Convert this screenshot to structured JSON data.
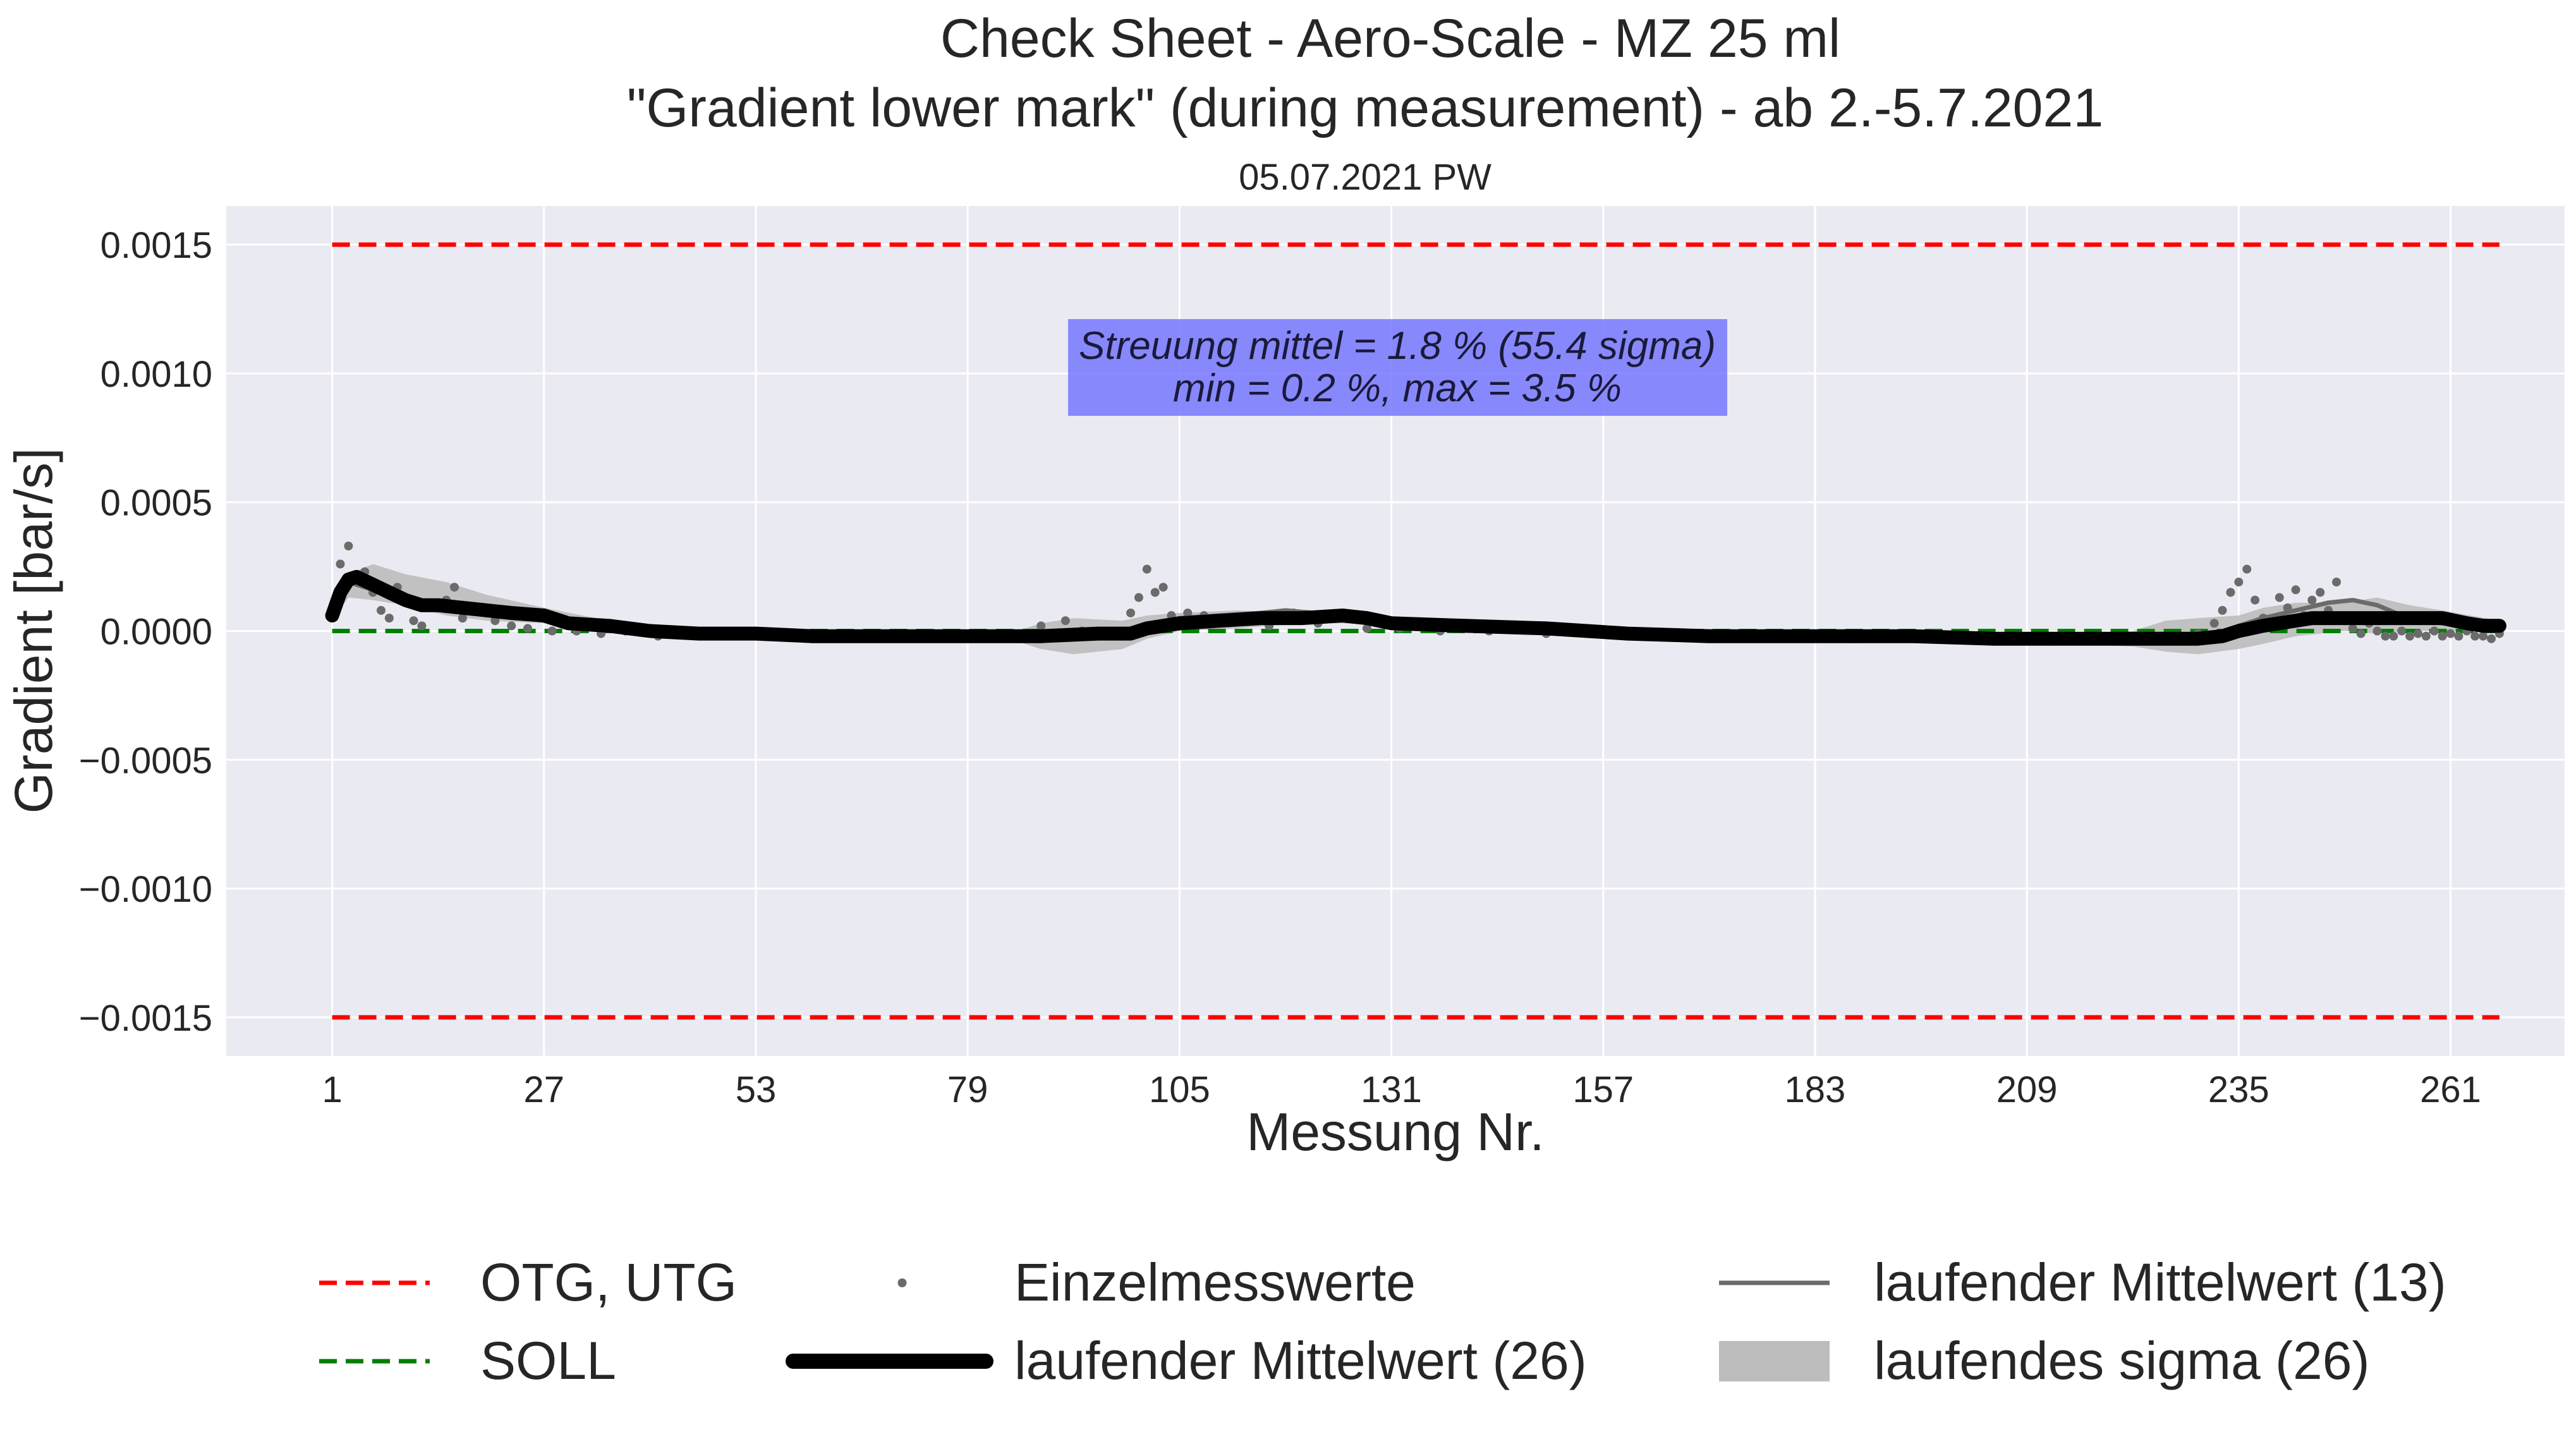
{
  "chart_data": {
    "type": "line",
    "title_line1": "Check Sheet - Aero-Scale - MZ 25 ml",
    "title_line2": "\"Gradient lower mark\" (during measurement) - ab 2.-5.7.2021",
    "subtitle": "05.07.2021 PW",
    "xlabel": "Messung Nr.",
    "ylabel": "Gradient [bar/s]",
    "xlim": [
      -12,
      275
    ],
    "ylim": [
      -0.00165,
      0.00165
    ],
    "x_ticks": [
      1,
      27,
      53,
      79,
      105,
      131,
      157,
      183,
      209,
      235,
      261
    ],
    "y_ticks": [
      0.0015,
      0.001,
      0.0005,
      0.0,
      -0.0005,
      -0.001,
      -0.0015
    ],
    "y_tick_labels": [
      "0.0015",
      "0.0010",
      "0.0005",
      "0.0000",
      "−0.0005",
      "−0.0010",
      "−0.0015"
    ],
    "grid": true,
    "background": "#eaeaf2",
    "limits": {
      "OTG": 0.0015,
      "UTG": -0.0015,
      "SOLL": 0.0,
      "x_end": 267,
      "color": "#ff0000",
      "soll_color": "#008000"
    },
    "annotation": {
      "line1": "Streuung mittel = 1.8 % (55.4 sigma)",
      "line2": "min = 0.2 %,   max = 3.5 %",
      "x": 132,
      "y": 0.00103,
      "color": "#7777ff"
    },
    "series": [
      {
        "name": "laufender Mittelwert (26)",
        "style": "line",
        "color": "#000000",
        "x": [
          1,
          2,
          3,
          4,
          6,
          8,
          10,
          12,
          14,
          17,
          20,
          23,
          27,
          30,
          35,
          40,
          46,
          53,
          60,
          70,
          79,
          88,
          95,
          99,
          101,
          105,
          110,
          115,
          120,
          125,
          128,
          131,
          140,
          150,
          160,
          170,
          183,
          195,
          205,
          215,
          225,
          230,
          233,
          235,
          238,
          240,
          244,
          250,
          255,
          260,
          263,
          265,
          267
        ],
        "y": [
          6e-05,
          0.00015,
          0.0002,
          0.00021,
          0.00018,
          0.00015,
          0.00012,
          0.0001,
          0.0001,
          9e-05,
          8e-05,
          7e-05,
          6e-05,
          3e-05,
          2e-05,
          0.0,
          -1e-05,
          -1e-05,
          -2e-05,
          -2e-05,
          -2e-05,
          -2e-05,
          -1e-05,
          -1e-05,
          1e-05,
          3e-05,
          4e-05,
          5e-05,
          5e-05,
          6e-05,
          5e-05,
          3e-05,
          2e-05,
          1e-05,
          -1e-05,
          -2e-05,
          -2e-05,
          -2e-05,
          -3e-05,
          -3e-05,
          -3e-05,
          -3e-05,
          -2e-05,
          0.0,
          2e-05,
          3e-05,
          5e-05,
          5e-05,
          5e-05,
          5e-05,
          3e-05,
          2e-05,
          2e-05
        ]
      },
      {
        "name": "laufender Mittelwert (13)",
        "style": "line",
        "color": "#6b6b6b",
        "x": [
          1,
          2,
          3,
          5,
          8,
          12,
          16,
          20,
          27,
          30,
          40,
          60,
          90,
          98,
          101,
          105,
          110,
          115,
          118,
          125,
          131,
          160,
          200,
          225,
          232,
          235,
          238,
          242,
          246,
          249,
          252,
          255,
          260,
          267
        ],
        "y": [
          8e-05,
          0.00016,
          0.00019,
          0.00017,
          0.00014,
          0.00011,
          0.0001,
          8e-05,
          6e-05,
          3e-05,
          0.0,
          -2e-05,
          -2e-05,
          -1e-05,
          2e-05,
          5e-05,
          6e-05,
          7e-05,
          8e-05,
          6e-05,
          3e-05,
          -1e-05,
          -3e-05,
          -3e-05,
          -2e-05,
          2e-05,
          5e-05,
          8e-05,
          0.00011,
          0.00012,
          0.0001,
          6e-05,
          3e-05,
          1e-05
        ]
      },
      {
        "name": "laufendes sigma (26)",
        "style": "band",
        "color": "#bdbdbd",
        "x": [
          1,
          3,
          6,
          10,
          15,
          20,
          27,
          35,
          45,
          60,
          85,
          88,
          92,
          98,
          101,
          105,
          112,
          120,
          125,
          131,
          150,
          183,
          215,
          222,
          226,
          230,
          235,
          238,
          242,
          248,
          252,
          256,
          260,
          267
        ],
        "upper": [
          0.0001,
          0.00022,
          0.00026,
          0.00022,
          0.00019,
          0.00014,
          9e-05,
          4e-05,
          1e-05,
          0.0,
          0.0,
          3e-05,
          5e-05,
          4e-05,
          6e-05,
          7e-05,
          8e-05,
          7e-05,
          8e-05,
          4e-05,
          2e-05,
          0.0,
          -1e-05,
          0.0,
          4e-05,
          5e-05,
          6e-05,
          9e-05,
          0.00011,
          0.00011,
          0.00013,
          0.0001,
          8e-05,
          4e-05
        ],
        "lower": [
          4e-05,
          0.00013,
          0.00012,
          0.0001,
          6e-05,
          4e-05,
          3e-05,
          0.0,
          -2e-05,
          -3e-05,
          -4e-05,
          -7e-05,
          -9e-05,
          -7e-05,
          -3e-05,
          0.0,
          1e-05,
          3e-05,
          3e-05,
          2e-05,
          0.0,
          -3e-05,
          -5e-05,
          -6e-05,
          -8e-05,
          -9e-05,
          -7e-05,
          -5e-05,
          -2e-05,
          0.0,
          -1e-05,
          0.0,
          0.0,
          0.0
        ]
      },
      {
        "name": "Einzelmesswerte",
        "style": "scatter",
        "color": "#6b6b6b",
        "points": [
          [
            2,
            0.00026
          ],
          [
            3,
            0.00033
          ],
          [
            4,
            0.00019
          ],
          [
            5,
            0.00023
          ],
          [
            6,
            0.00015
          ],
          [
            7,
            8e-05
          ],
          [
            8,
            5e-05
          ],
          [
            9,
            0.00017
          ],
          [
            10,
            0.00012
          ],
          [
            11,
            4e-05
          ],
          [
            12,
            2e-05
          ],
          [
            14,
            9e-05
          ],
          [
            15,
            0.00012
          ],
          [
            16,
            0.00017
          ],
          [
            17,
            5e-05
          ],
          [
            19,
            8e-05
          ],
          [
            21,
            4e-05
          ],
          [
            23,
            2e-05
          ],
          [
            25,
            1e-05
          ],
          [
            28,
            0.0
          ],
          [
            31,
            0.0
          ],
          [
            34,
            -1e-05
          ],
          [
            37,
            0.0
          ],
          [
            41,
            -2e-05
          ],
          [
            45,
            -1e-05
          ],
          [
            50,
            -1e-05
          ],
          [
            55,
            -2e-05
          ],
          [
            60,
            -2e-05
          ],
          [
            66,
            -2e-05
          ],
          [
            72,
            -2e-05
          ],
          [
            78,
            -2e-05
          ],
          [
            84,
            -2e-05
          ],
          [
            88,
            2e-05
          ],
          [
            91,
            4e-05
          ],
          [
            93,
            0.0
          ],
          [
            96,
            -2e-05
          ],
          [
            98,
            0.0
          ],
          [
            99,
            7e-05
          ],
          [
            100,
            0.00013
          ],
          [
            101,
            0.00024
          ],
          [
            102,
            0.00015
          ],
          [
            103,
            0.00017
          ],
          [
            104,
            6e-05
          ],
          [
            106,
            7e-05
          ],
          [
            108,
            6e-05
          ],
          [
            110,
            5e-05
          ],
          [
            113,
            4e-05
          ],
          [
            116,
            2e-05
          ],
          [
            119,
            7e-05
          ],
          [
            122,
            3e-05
          ],
          [
            125,
            5e-05
          ],
          [
            128,
            1e-05
          ],
          [
            132,
            1e-05
          ],
          [
            137,
            0.0
          ],
          [
            143,
            0.0
          ],
          [
            150,
            -1e-05
          ],
          [
            158,
            -1e-05
          ],
          [
            165,
            -2e-05
          ],
          [
            172,
            -2e-05
          ],
          [
            180,
            -2e-05
          ],
          [
            188,
            -3e-05
          ],
          [
            196,
            -3e-05
          ],
          [
            204,
            -3e-05
          ],
          [
            212,
            -4e-05
          ],
          [
            220,
            -3e-05
          ],
          [
            226,
            -2e-05
          ],
          [
            230,
            -1e-05
          ],
          [
            232,
            3e-05
          ],
          [
            233,
            8e-05
          ],
          [
            234,
            0.00015
          ],
          [
            235,
            0.00019
          ],
          [
            236,
            0.00024
          ],
          [
            237,
            0.00012
          ],
          [
            238,
            5e-05
          ],
          [
            239,
            3e-05
          ],
          [
            240,
            0.00013
          ],
          [
            241,
            9e-05
          ],
          [
            242,
            0.00016
          ],
          [
            243,
            6e-05
          ],
          [
            244,
            0.00012
          ],
          [
            245,
            0.00015
          ],
          [
            246,
            8e-05
          ],
          [
            247,
            0.00019
          ],
          [
            248,
            4e-05
          ],
          [
            249,
            1e-05
          ],
          [
            250,
            -1e-05
          ],
          [
            251,
            3e-05
          ],
          [
            252,
            0.0
          ],
          [
            253,
            -2e-05
          ],
          [
            254,
            -2e-05
          ],
          [
            255,
            0.0
          ],
          [
            256,
            -2e-05
          ],
          [
            257,
            -1e-05
          ],
          [
            258,
            -2e-05
          ],
          [
            259,
            0.0
          ],
          [
            260,
            -2e-05
          ],
          [
            261,
            -1e-05
          ],
          [
            262,
            -2e-05
          ],
          [
            263,
            0.0
          ],
          [
            264,
            -2e-05
          ],
          [
            265,
            -2e-05
          ],
          [
            266,
            -3e-05
          ],
          [
            267,
            -1e-05
          ]
        ]
      }
    ],
    "legend": {
      "placement": "bottom",
      "entries": [
        {
          "label": "OTG, UTG",
          "marker": "dashed-line",
          "color": "#ff0000"
        },
        {
          "label": "SOLL",
          "marker": "dashed-line",
          "color": "#008000"
        },
        {
          "label": "Einzelmesswerte",
          "marker": "dot",
          "color": "#6b6b6b"
        },
        {
          "label": "laufender Mittelwert (26)",
          "marker": "thick-line",
          "color": "#000000"
        },
        {
          "label": "laufender Mittelwert (13)",
          "marker": "line",
          "color": "#6b6b6b"
        },
        {
          "label": "laufendes sigma (26)",
          "marker": "patch",
          "color": "#bdbdbd"
        }
      ]
    }
  }
}
